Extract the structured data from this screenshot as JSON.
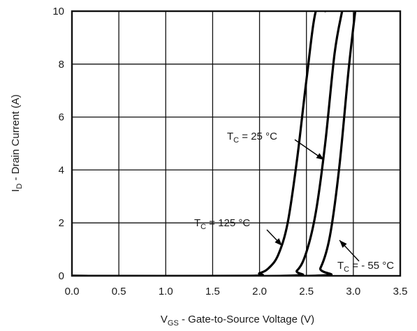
{
  "chart_data": {
    "type": "line",
    "title": "",
    "xlabel": {
      "main": "V",
      "sub": "GS",
      "rest": " - Gate-to-Source Voltage (V)"
    },
    "ylabel": {
      "main": "I",
      "sub": "D",
      "rest": " - Drain Current (A)"
    },
    "xlim": [
      0.0,
      3.5
    ],
    "ylim": [
      0,
      10
    ],
    "xticks": [
      0.0,
      0.5,
      1.0,
      1.5,
      2.0,
      2.5,
      3.0,
      3.5
    ],
    "xtick_labels": [
      "0.0",
      "0.5",
      "1.0",
      "1.5",
      "2.0",
      "2.5",
      "3.0",
      "3.5"
    ],
    "yticks": [
      0,
      2,
      4,
      6,
      8,
      10
    ],
    "ytick_labels": [
      "0",
      "2",
      "4",
      "6",
      "8",
      "10"
    ],
    "grid": true,
    "series": [
      {
        "label": {
          "main": "T",
          "sub": "C",
          "rest": " = 125 °C"
        },
        "x": [
          1.85,
          2.0,
          2.1,
          2.2,
          2.3,
          2.4,
          2.5,
          2.6,
          2.7
        ],
        "y": [
          0,
          0.1,
          0.3,
          0.8,
          2.0,
          4.4,
          7.4,
          10.0,
          10.0
        ]
      },
      {
        "label": {
          "main": "T",
          "sub": "C",
          "rest": " = 25 °C"
        },
        "x": [
          2.25,
          2.4,
          2.5,
          2.6,
          2.7,
          2.8,
          2.88
        ],
        "y": [
          0,
          0.2,
          0.9,
          2.4,
          5.0,
          8.4,
          10.0
        ]
      },
      {
        "label": {
          "main": "T",
          "sub": "C",
          "rest": " = - 55 °C"
        },
        "x": [
          2.55,
          2.65,
          2.75,
          2.85,
          2.95,
          3.02
        ],
        "y": [
          0,
          0.3,
          1.5,
          4.1,
          7.8,
          10.0
        ]
      }
    ]
  }
}
